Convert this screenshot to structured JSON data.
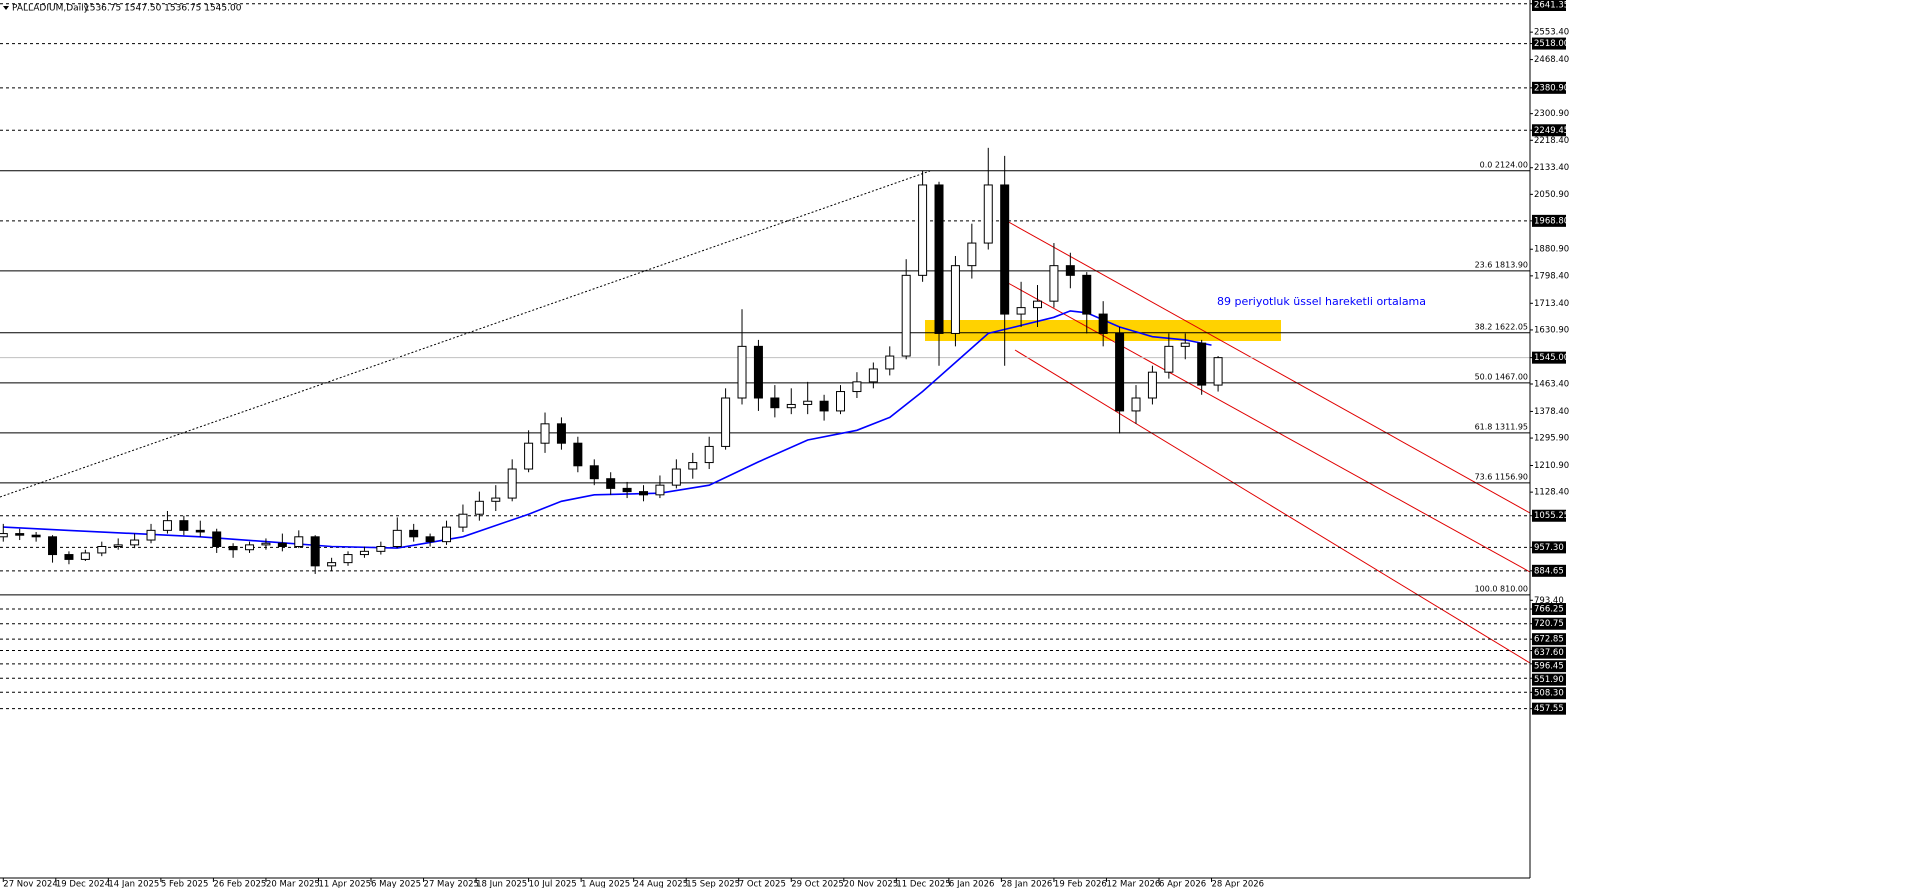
{
  "chart_data": {
    "type": "candlestick",
    "title": "PALLADIUM,Daily",
    "header_ohlc": "1536.75 1547.50 1536.75 1545.00",
    "annotation": "89 periyotluk üssel hareketli ortalama",
    "x": [
      0,
      5,
      10,
      15,
      20,
      25,
      30,
      35,
      40,
      45,
      50,
      55,
      60,
      65,
      70,
      75,
      80,
      85,
      90,
      95,
      100,
      105,
      110,
      115,
      120,
      125,
      130,
      135,
      140,
      145,
      150,
      155,
      160,
      165,
      170,
      175,
      180,
      185,
      190,
      195,
      200,
      205,
      210,
      215,
      220,
      225,
      230,
      235,
      240,
      245,
      250,
      255,
      260,
      265,
      270,
      275,
      280,
      285,
      290,
      295,
      300,
      305,
      310,
      315,
      320,
      325,
      330,
      335,
      340,
      345,
      350,
      355,
      360,
      365,
      370
    ],
    "open": [
      990,
      1000,
      995,
      990,
      935,
      920,
      940,
      960,
      965,
      980,
      1010,
      1040,
      1010,
      1005,
      960,
      950,
      965,
      970,
      960,
      990,
      900,
      910,
      935,
      945,
      960,
      1010,
      990,
      975,
      1020,
      1060,
      1100,
      1110,
      1200,
      1280,
      1340,
      1280,
      1210,
      1170,
      1140,
      1130,
      1120,
      1150,
      1200,
      1220,
      1270,
      1420,
      1580,
      1420,
      1390,
      1400,
      1410,
      1380,
      1440,
      1470,
      1510,
      1550,
      1800,
      2080,
      1620,
      1830,
      1900,
      2080,
      1680,
      1700,
      1720,
      1830,
      1800,
      1680,
      1620,
      1380,
      1420,
      1500,
      1580,
      1590,
      1460
    ],
    "high": [
      1030,
      1015,
      1005,
      995,
      945,
      950,
      975,
      985,
      1000,
      1030,
      1070,
      1055,
      1040,
      1015,
      970,
      975,
      985,
      1000,
      1010,
      995,
      925,
      945,
      960,
      975,
      1050,
      1030,
      1000,
      1040,
      1090,
      1130,
      1150,
      1230,
      1320,
      1375,
      1360,
      1300,
      1230,
      1190,
      1160,
      1150,
      1180,
      1230,
      1250,
      1300,
      1450,
      1695,
      1600,
      1460,
      1450,
      1470,
      1430,
      1460,
      1500,
      1530,
      1580,
      1850,
      2124,
      2090,
      1860,
      1960,
      2195,
      2170,
      1780,
      1770,
      1900,
      1870,
      1810,
      1720,
      1640,
      1460,
      1520,
      1620,
      1620,
      1600,
      1550
    ],
    "low": [
      975,
      980,
      975,
      910,
      905,
      915,
      930,
      950,
      955,
      970,
      1000,
      995,
      990,
      940,
      925,
      940,
      950,
      945,
      955,
      875,
      885,
      900,
      925,
      935,
      955,
      975,
      960,
      965,
      1005,
      1040,
      1070,
      1100,
      1190,
      1250,
      1260,
      1190,
      1150,
      1120,
      1110,
      1100,
      1110,
      1140,
      1170,
      1200,
      1260,
      1400,
      1380,
      1360,
      1370,
      1370,
      1350,
      1370,
      1420,
      1450,
      1490,
      1540,
      1780,
      1520,
      1580,
      1790,
      1880,
      1520,
      1640,
      1640,
      1700,
      1760,
      1620,
      1580,
      1310,
      1340,
      1400,
      1480,
      1540,
      1430,
      1440
    ],
    "close": [
      1000,
      995,
      990,
      935,
      920,
      940,
      960,
      965,
      980,
      1010,
      1040,
      1010,
      1005,
      960,
      950,
      965,
      970,
      960,
      990,
      900,
      910,
      935,
      945,
      960,
      1010,
      990,
      975,
      1020,
      1060,
      1100,
      1110,
      1200,
      1280,
      1340,
      1280,
      1210,
      1170,
      1140,
      1130,
      1120,
      1150,
      1200,
      1220,
      1270,
      1420,
      1580,
      1420,
      1390,
      1400,
      1410,
      1380,
      1440,
      1470,
      1510,
      1550,
      1800,
      2080,
      1620,
      1830,
      1900,
      2080,
      1680,
      1700,
      1720,
      1830,
      1800,
      1680,
      1620,
      1380,
      1420,
      1500,
      1580,
      1590,
      1460,
      1545
    ],
    "ema": {
      "color": "#0000ff",
      "x": [
        0,
        20,
        40,
        60,
        80,
        100,
        120,
        140,
        160,
        170,
        180,
        200,
        215,
        230,
        245,
        260,
        270,
        280,
        290,
        300,
        310,
        320,
        325,
        330,
        340,
        350,
        360,
        368
      ],
      "values": [
        1020,
        1010,
        1000,
        990,
        975,
        960,
        955,
        990,
        1060,
        1100,
        1120,
        1125,
        1150,
        1222,
        1290,
        1320,
        1360,
        1440,
        1530,
        1620,
        1645,
        1670,
        1690,
        1684,
        1640,
        1610,
        1600,
        1584
      ]
    },
    "xlim": [
      -1,
      465
    ],
    "ylim": [
      -67,
      2653
    ],
    "xticks": [
      {
        "value": 0,
        "label": "27 Nov 2024"
      },
      {
        "value": 16,
        "label": "19 Dec 2024"
      },
      {
        "value": 32,
        "label": "14 Jan 2025"
      },
      {
        "value": 48,
        "label": "5 Feb 2025"
      },
      {
        "value": 64,
        "label": "26 Feb 2025"
      },
      {
        "value": 80,
        "label": "20 Mar 2025"
      },
      {
        "value": 96,
        "label": "11 Apr 2025"
      },
      {
        "value": 112,
        "label": "6 May 2025"
      },
      {
        "value": 128,
        "label": "27 May 2025"
      },
      {
        "value": 144,
        "label": "18 Jun 2025"
      },
      {
        "value": 160,
        "label": "10 Jul 2025"
      },
      {
        "value": 176,
        "label": "1 Aug 2025"
      },
      {
        "value": 192,
        "label": "24 Aug 2025"
      },
      {
        "value": 208,
        "label": "15 Sep 2025"
      },
      {
        "value": 224,
        "label": "7 Oct 2025"
      },
      {
        "value": 240,
        "label": "29 Oct 2025"
      },
      {
        "value": 256,
        "label": "20 Nov 2025"
      },
      {
        "value": 272,
        "label": "11 Dec 2025"
      },
      {
        "value": 288,
        "label": "6 Jan 2026"
      },
      {
        "value": 304,
        "label": "28 Jan 2026"
      },
      {
        "value": 320,
        "label": "19 Feb 2026"
      },
      {
        "value": 336,
        "label": "12 Mar 2026"
      },
      {
        "value": 352,
        "label": "6 Apr 2026"
      },
      {
        "value": 368,
        "label": "28 Apr 2026"
      }
    ],
    "yticks": [
      {
        "value": 2553.4,
        "label": "2553.40"
      },
      {
        "value": 2468.4,
        "label": "2468.40"
      },
      {
        "value": 2300.9,
        "label": "2300.90"
      },
      {
        "value": 2218.4,
        "label": "2218.40"
      },
      {
        "value": 2133.4,
        "label": "2133.40"
      },
      {
        "value": 2050.9,
        "label": "2050.90"
      },
      {
        "value": 1880.9,
        "label": "1880.90"
      },
      {
        "value": 1798.4,
        "label": "1798.40"
      },
      {
        "value": 1713.4,
        "label": "1713.40"
      },
      {
        "value": 1630.9,
        "label": "1630.90"
      },
      {
        "value": 1463.4,
        "label": "1463.40"
      },
      {
        "value": 1378.4,
        "label": "1378.40"
      },
      {
        "value": 1295.9,
        "label": "1295.90"
      },
      {
        "value": 1210.9,
        "label": "1210.90"
      },
      {
        "value": 1128.4,
        "label": "1128.40"
      },
      {
        "value": 793.4,
        "label": "793.40"
      }
    ],
    "levels": [
      {
        "value": 2641.35,
        "label": "2641.35"
      },
      {
        "value": 2518,
        "label": "2518.00"
      },
      {
        "value": 2380.9,
        "label": "2380.90"
      },
      {
        "value": 2249.45,
        "label": "2249.45"
      },
      {
        "value": 1968.8,
        "label": "1968.80"
      },
      {
        "value": 1545,
        "label": "1545.00"
      },
      {
        "value": 1055.25,
        "label": "1055.25"
      },
      {
        "value": 957.3,
        "label": "957.30"
      },
      {
        "value": 884.65,
        "label": "884.65"
      },
      {
        "value": 766.25,
        "label": "766.25"
      },
      {
        "value": 720.75,
        "label": "720.75"
      },
      {
        "value": 672.85,
        "label": "672.85"
      },
      {
        "value": 637.6,
        "label": "637.60"
      },
      {
        "value": 596.45,
        "label": "596.45"
      },
      {
        "value": 551.9,
        "label": "551.90"
      },
      {
        "value": 508.3,
        "label": "508.30"
      },
      {
        "value": 457.55,
        "label": "457.55"
      }
    ],
    "fib": [
      {
        "value": 2124,
        "label": "0.0 2124.00"
      },
      {
        "value": 1813.9,
        "label": "23.6 1813.90"
      },
      {
        "value": 1622.05,
        "label": "38.2 1622.05"
      },
      {
        "value": 1467,
        "label": "50.0 1467.00"
      },
      {
        "value": 1311.95,
        "label": "61.8 1311.95"
      },
      {
        "value": 1156.9,
        "label": "73.6 1156.90"
      },
      {
        "value": 810,
        "label": "100.0 810.00"
      }
    ]
  }
}
